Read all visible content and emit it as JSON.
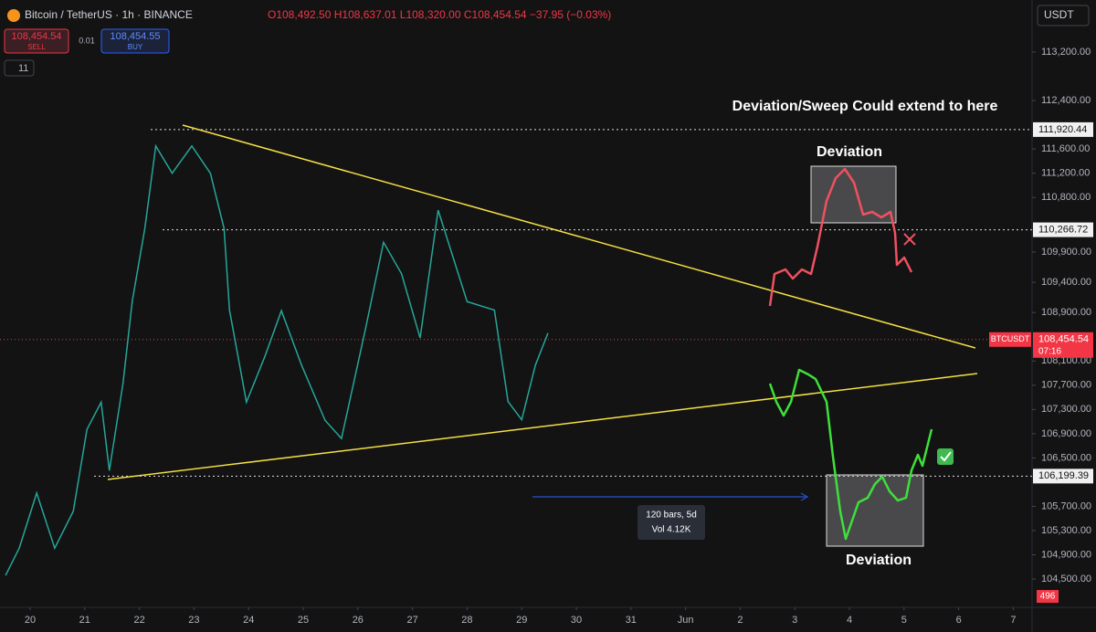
{
  "header": {
    "symbol": "Bitcoin / TetherUS · 1h · BINANCE",
    "ohlc": "O108,492.50 H108,637.01 L108,320.00 C108,454.54 −37.95 (−0.03%)",
    "indicators": "11",
    "currency": "USDT"
  },
  "trade": {
    "sell_price": "108,454.54",
    "sell": "SELL",
    "spread": "0.01",
    "buy_price": "108,454.55",
    "buy": "BUY"
  },
  "chart_data": {
    "type": "line",
    "x": [
      -0.45,
      -0.2,
      0.12,
      0.45,
      0.79,
      1.04,
      1.3,
      1.45,
      1.7,
      1.87,
      2.1,
      2.3,
      2.6,
      2.96,
      3.3,
      3.55,
      3.65,
      3.96,
      4.3,
      4.6,
      4.97,
      5.4,
      5.7,
      6.14,
      6.47,
      6.8,
      7.14,
      7.47,
      8.0,
      8.5,
      8.75,
      9.0,
      9.25,
      9.48
    ],
    "series": [
      {
        "name": "BTCUSDT",
        "color": "#26a69a",
        "values": [
          104560,
          105010,
          105920,
          105010,
          105620,
          106970,
          107420,
          106290,
          107730,
          109090,
          110290,
          111650,
          111200,
          111650,
          111200,
          110290,
          108940,
          107420,
          108180,
          108930,
          108030,
          107120,
          106820,
          108630,
          110060,
          109540,
          108480,
          110590,
          109080,
          108940,
          107430,
          107130,
          108030,
          108560
        ]
      }
    ],
    "xlim": [
      -0.552,
      18.344
    ],
    "xticks": [
      {
        "value": 0,
        "label": "20"
      },
      {
        "value": 1,
        "label": "21"
      },
      {
        "value": 2,
        "label": "22"
      },
      {
        "value": 3,
        "label": "23"
      },
      {
        "value": 4,
        "label": "24"
      },
      {
        "value": 5,
        "label": "25"
      },
      {
        "value": 6,
        "label": "26"
      },
      {
        "value": 7,
        "label": "27"
      },
      {
        "value": 8,
        "label": "28"
      },
      {
        "value": 9,
        "label": "29"
      },
      {
        "value": 10,
        "label": "30"
      },
      {
        "value": 11,
        "label": "31"
      },
      {
        "value": 12,
        "label": "Jun"
      },
      {
        "value": 13,
        "label": "2"
      },
      {
        "value": 14,
        "label": "3"
      },
      {
        "value": 15,
        "label": "4"
      },
      {
        "value": 16,
        "label": "5"
      },
      {
        "value": 17,
        "label": "6"
      },
      {
        "value": 18,
        "label": "7"
      }
    ],
    "ylim": [
      104033,
      114060
    ],
    "yticks": [
      {
        "value": 113200,
        "label": "113,200.00"
      },
      {
        "value": 112400,
        "label": "112,400.00"
      },
      {
        "value": 111600,
        "label": "111,600.00"
      },
      {
        "value": 111200,
        "label": "111,200.00"
      },
      {
        "value": 110800,
        "label": "110,800.00"
      },
      {
        "value": 109900,
        "label": "109,900.00"
      },
      {
        "value": 109400,
        "label": "109,400.00"
      },
      {
        "value": 108900,
        "label": "108,900.00"
      },
      {
        "value": 108100,
        "label": "108,100.00"
      },
      {
        "value": 107700,
        "label": "107,700.00"
      },
      {
        "value": 107300,
        "label": "107,300.00"
      },
      {
        "value": 106900,
        "label": "106,900.00"
      },
      {
        "value": 106500,
        "label": "106,500.00"
      },
      {
        "value": 105700,
        "label": "105,700.00"
      },
      {
        "value": 105300,
        "label": "105,300.00"
      },
      {
        "value": 104900,
        "label": "104,900.00"
      },
      {
        "value": 104500,
        "label": "104,500.00"
      }
    ],
    "levels": [
      {
        "value": 111920.44,
        "label": "111,920.44"
      },
      {
        "value": 110266.72,
        "label": "110,266.72"
      },
      {
        "value": 106199.39,
        "label": "106,199.39"
      }
    ],
    "current": {
      "value": 108454.54,
      "label": "108,454.54",
      "name": "BTCUSDT",
      "countdown": "07:16"
    }
  },
  "annotations": {
    "title": "Deviation/Sweep Could extend to here",
    "top_box": "Deviation",
    "bottom_box": "Deviation",
    "range_bars": "120 bars, 5d",
    "range_vol": "Vol 4.12K",
    "volume": "496"
  }
}
